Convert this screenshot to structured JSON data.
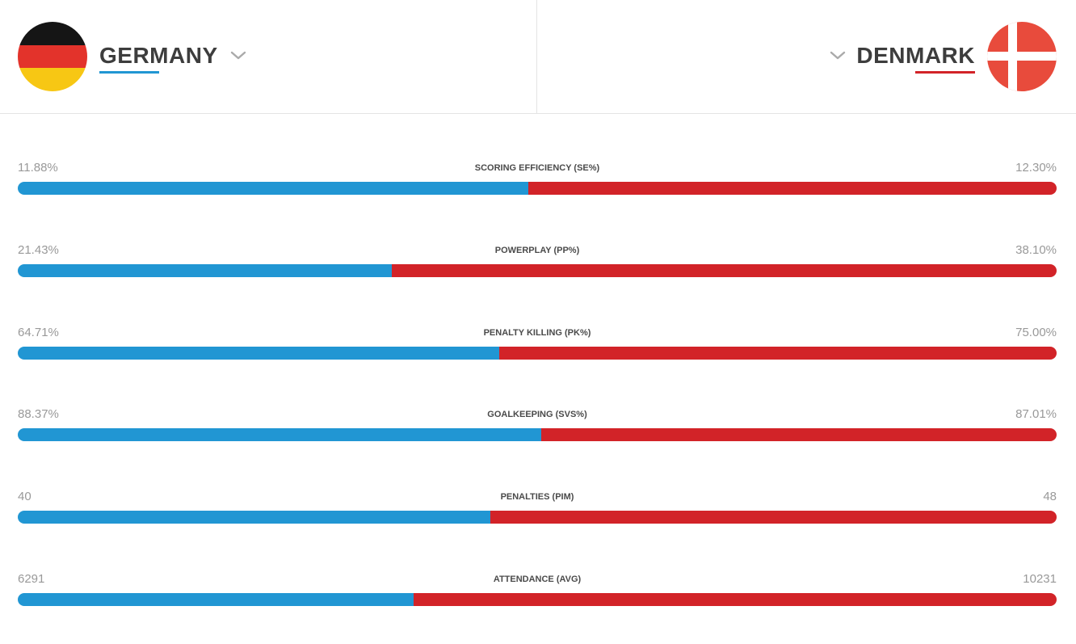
{
  "colors": {
    "home": "#2196d3",
    "away": "#d22328",
    "de_black": "#151515",
    "de_red": "#e3332b",
    "de_gold": "#f7c714",
    "dk_red": "#e84b3c"
  },
  "teams": {
    "home": {
      "name": "GERMANY",
      "flag_icon": "germany-flag-icon"
    },
    "away": {
      "name": "DENMARK",
      "flag_icon": "denmark-flag-icon"
    }
  },
  "stats": [
    {
      "label": "SCORING EFFICIENCY (SE%)",
      "home": "11.88%",
      "away": "12.30%",
      "home_value": 11.88,
      "away_value": 12.3
    },
    {
      "label": "POWERPLAY (PP%)",
      "home": "21.43%",
      "away": "38.10%",
      "home_value": 21.43,
      "away_value": 38.1
    },
    {
      "label": "PENALTY KILLING (PK%)",
      "home": "64.71%",
      "away": "75.00%",
      "home_value": 64.71,
      "away_value": 75.0
    },
    {
      "label": "GOALKEEPING (SVS%)",
      "home": "88.37%",
      "away": "87.01%",
      "home_value": 88.37,
      "away_value": 87.01
    },
    {
      "label": "PENALTIES (PIM)",
      "home": "40",
      "away": "48",
      "home_value": 40,
      "away_value": 48
    },
    {
      "label": "ATTENDANCE (AVG)",
      "home": "6291",
      "away": "10231",
      "home_value": 6291,
      "away_value": 10231
    }
  ]
}
